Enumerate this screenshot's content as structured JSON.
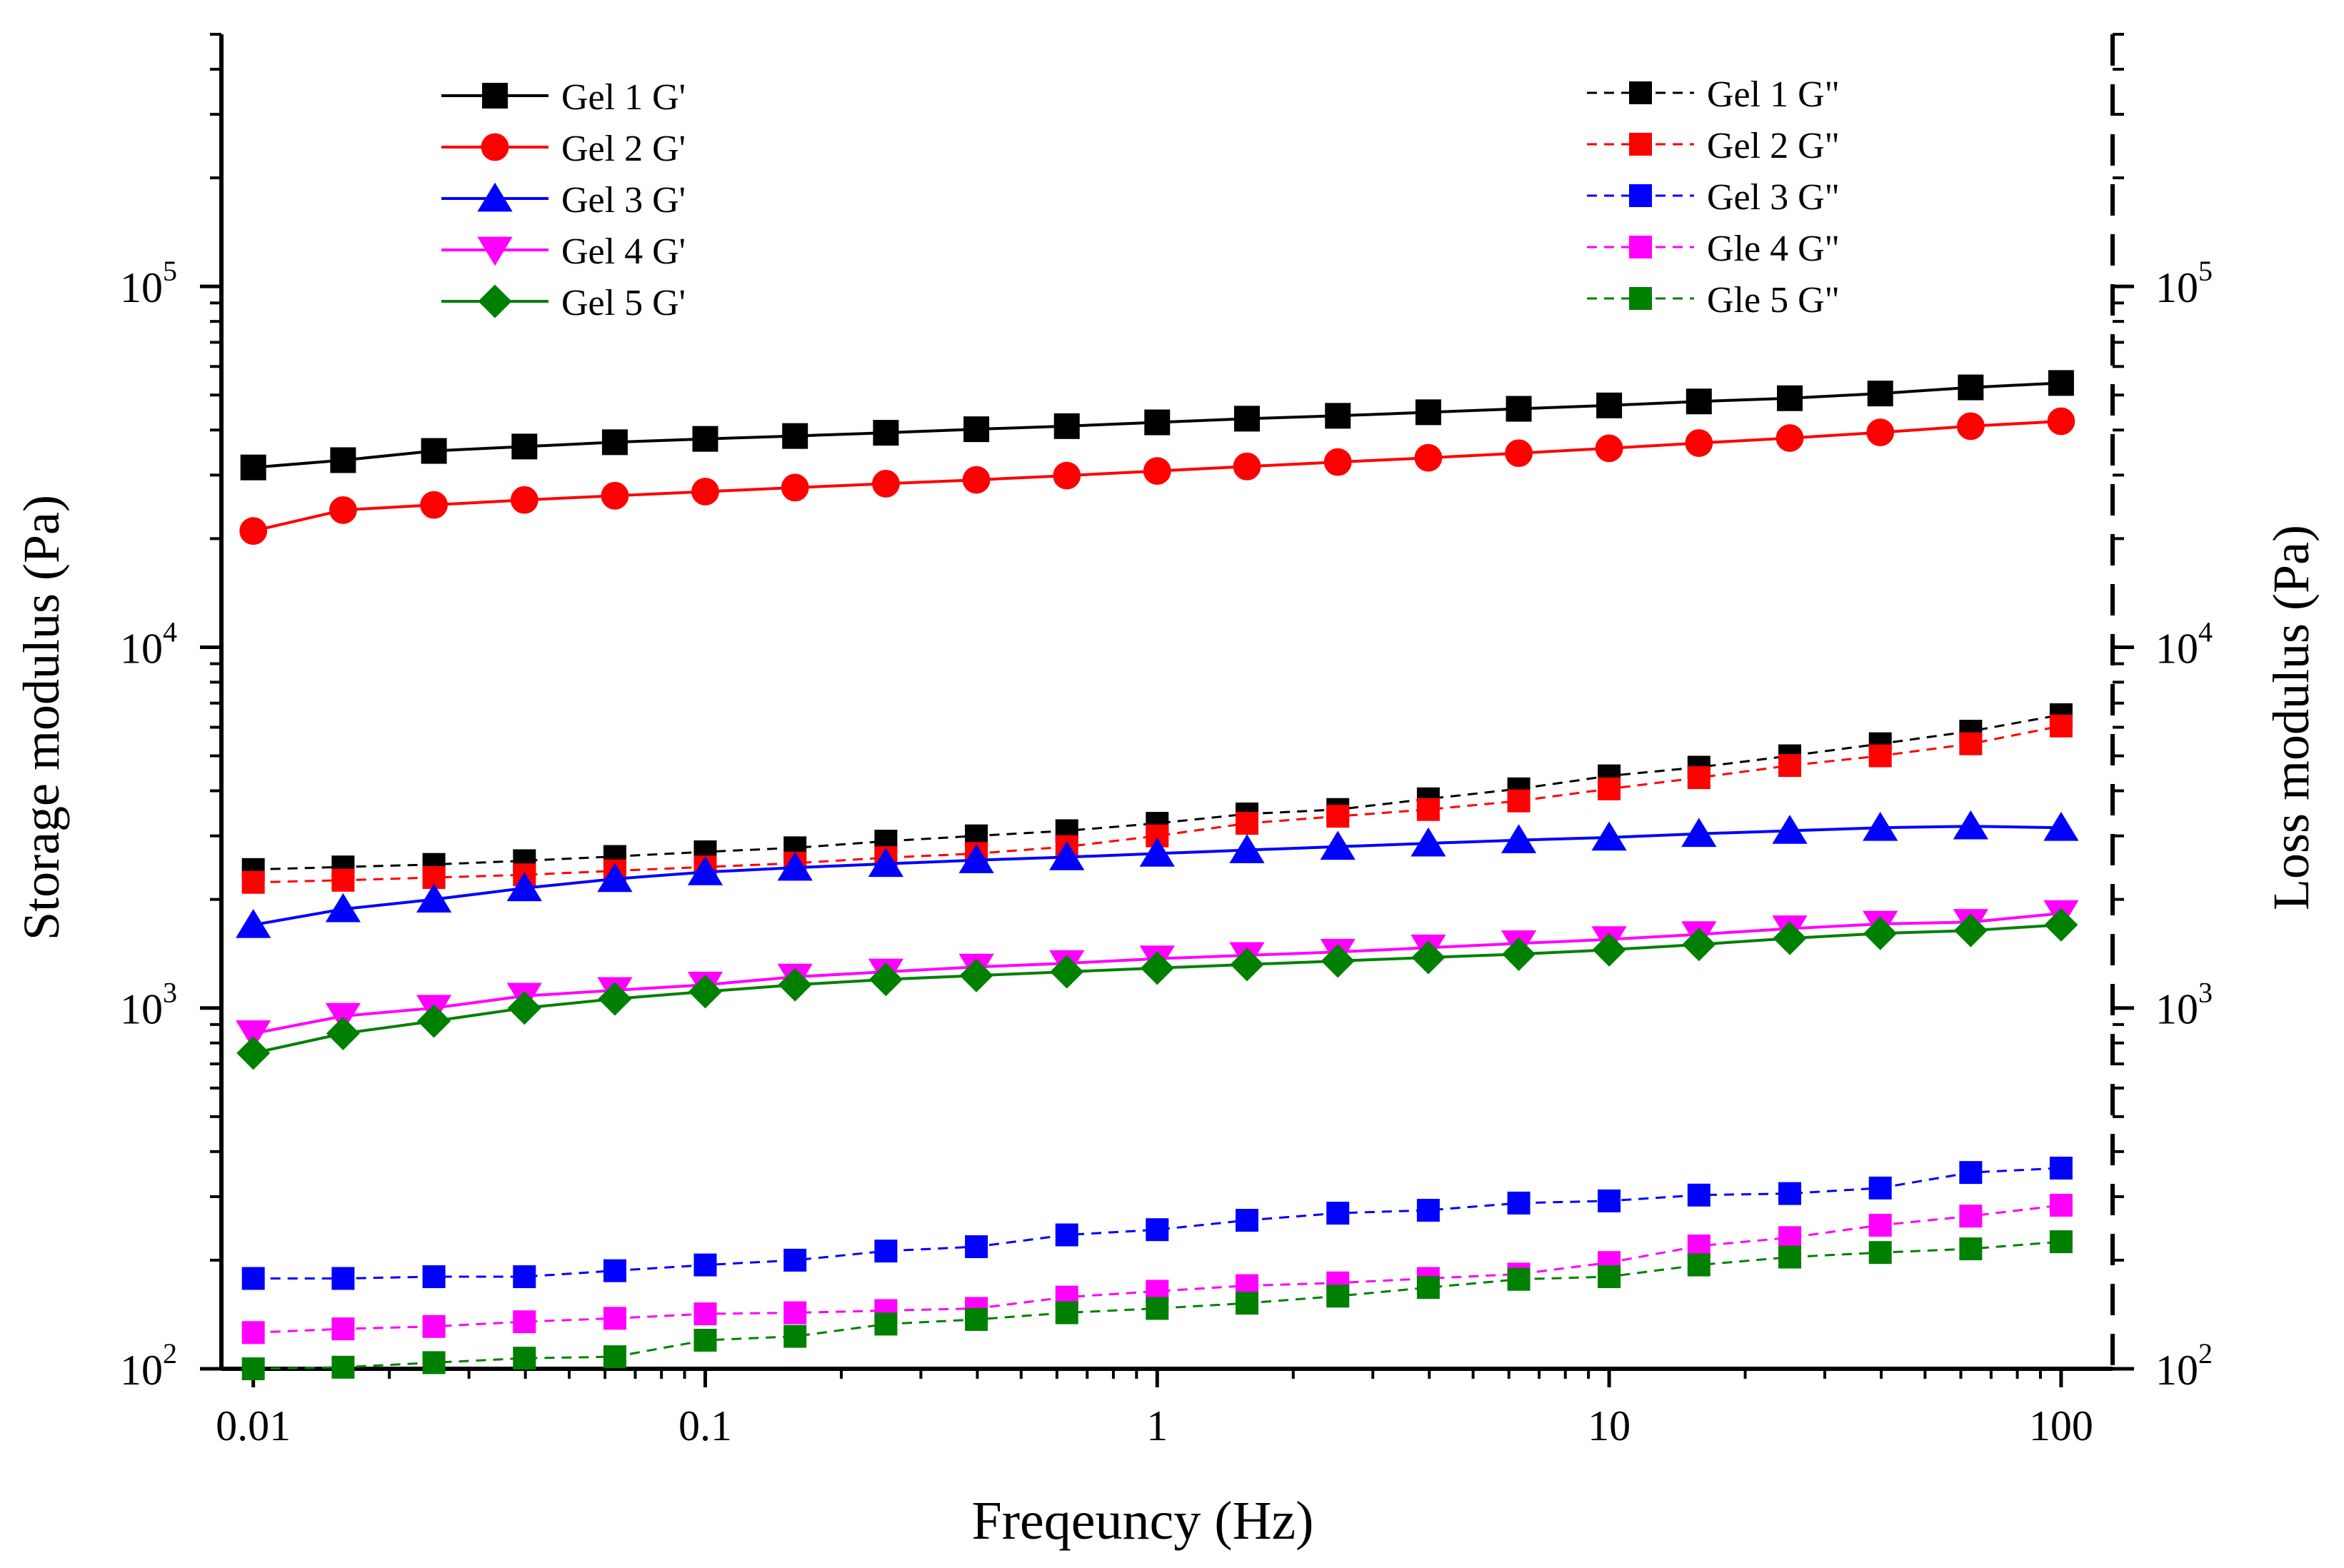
{
  "chart_data": {
    "type": "line",
    "xlabel": "Freqeuncy (Hz)",
    "ylabel_left": "Storage modulus (Pa)",
    "ylabel_right": "Loss modulus (Pa)",
    "x_scale": "log",
    "y_scale": "log",
    "xlim": [
      0.0085,
      130
    ],
    "ylim": [
      100,
      500000
    ],
    "x_ticks": [
      {
        "value": 0.01,
        "label": "0.01"
      },
      {
        "value": 0.1,
        "label": "0.1"
      },
      {
        "value": 1,
        "label": "1"
      },
      {
        "value": 10,
        "label": "10"
      },
      {
        "value": 100,
        "label": "100"
      }
    ],
    "y_ticks": [
      {
        "value": 100,
        "base": "10",
        "exp": "2"
      },
      {
        "value": 1000,
        "base": "10",
        "exp": "3"
      },
      {
        "value": 10000,
        "base": "10",
        "exp": "4"
      },
      {
        "value": 100000,
        "base": "10",
        "exp": "5"
      }
    ],
    "x": [
      0.01,
      0.0158,
      0.0251,
      0.0398,
      0.0631,
      0.1,
      0.158,
      0.251,
      0.398,
      0.631,
      1,
      1.58,
      2.51,
      3.98,
      6.31,
      10,
      15.8,
      25.1,
      39.8,
      63.1,
      100
    ],
    "series": [
      {
        "name": "Gel 1 G'",
        "axis": "left",
        "marker": "square",
        "line": "solid",
        "color": "#000000",
        "values": [
          31500,
          33000,
          35000,
          36000,
          37000,
          37800,
          38500,
          39300,
          40200,
          41000,
          42000,
          43000,
          43800,
          44800,
          45800,
          46800,
          48000,
          49000,
          50500,
          52500,
          54000
        ]
      },
      {
        "name": "Gel 2 G'",
        "axis": "left",
        "marker": "circle",
        "line": "solid",
        "color": "#ff0000",
        "values": [
          21000,
          24000,
          24800,
          25600,
          26300,
          27000,
          27700,
          28400,
          29100,
          29900,
          30800,
          31700,
          32600,
          33500,
          34500,
          35600,
          36800,
          38000,
          39400,
          41000,
          42300
        ]
      },
      {
        "name": "Gel 3 G'",
        "axis": "left",
        "marker": "triangle-up",
        "line": "solid",
        "color": "#0000ff",
        "values": [
          1700,
          1880,
          2000,
          2150,
          2280,
          2380,
          2450,
          2510,
          2570,
          2620,
          2680,
          2740,
          2800,
          2860,
          2920,
          2970,
          3040,
          3100,
          3160,
          3190,
          3160
        ]
      },
      {
        "name": "Gel 4 G'",
        "axis": "left",
        "marker": "triangle-down",
        "line": "solid",
        "color": "#ff00ff",
        "values": [
          850,
          950,
          1000,
          1080,
          1120,
          1160,
          1220,
          1260,
          1300,
          1330,
          1370,
          1400,
          1430,
          1470,
          1510,
          1550,
          1600,
          1660,
          1710,
          1730,
          1830
        ]
      },
      {
        "name": "Gel 5 G'",
        "axis": "left",
        "marker": "diamond",
        "line": "solid",
        "color": "#008000",
        "values": [
          750,
          850,
          920,
          1000,
          1060,
          1110,
          1160,
          1200,
          1230,
          1260,
          1290,
          1320,
          1350,
          1380,
          1410,
          1450,
          1500,
          1560,
          1610,
          1640,
          1700
        ]
      },
      {
        "name": "Gel 1 G\"",
        "axis": "right",
        "marker": "square",
        "line": "dashed",
        "color": "#000000",
        "values": [
          2420,
          2460,
          2500,
          2560,
          2630,
          2710,
          2780,
          2900,
          3000,
          3100,
          3250,
          3450,
          3550,
          3800,
          4050,
          4400,
          4650,
          5000,
          5400,
          5850,
          6500
        ]
      },
      {
        "name": "Gel 2 G\"",
        "axis": "right",
        "marker": "square",
        "line": "dashed",
        "color": "#ff0000",
        "values": [
          2230,
          2260,
          2300,
          2340,
          2400,
          2460,
          2520,
          2610,
          2680,
          2800,
          3000,
          3250,
          3400,
          3550,
          3750,
          4050,
          4350,
          4700,
          5000,
          5400,
          6050
        ]
      },
      {
        "name": "Gel 3 G\"",
        "axis": "right",
        "marker": "square",
        "line": "dashed",
        "color": "#0000ff",
        "values": [
          178,
          178,
          180,
          180,
          187,
          194,
          200,
          212,
          218,
          235,
          243,
          258,
          270,
          275,
          288,
          292,
          303,
          306,
          317,
          350,
          360
        ]
      },
      {
        "name": "Gle 4 G\"",
        "axis": "right",
        "marker": "square",
        "line": "dashed",
        "color": "#ff00ff",
        "values": [
          126,
          129,
          131,
          135,
          138,
          142,
          143,
          145,
          147,
          158,
          164,
          170,
          173,
          178,
          183,
          197,
          219,
          231,
          250,
          265,
          284
        ]
      },
      {
        "name": "Gle 5 G\"",
        "axis": "right",
        "marker": "square",
        "line": "dashed",
        "color": "#008000",
        "values": [
          100,
          101,
          104,
          107,
          108,
          120,
          123,
          133,
          137,
          143,
          147,
          152,
          159,
          168,
          177,
          180,
          194,
          204,
          210,
          215,
          225
        ]
      }
    ]
  }
}
